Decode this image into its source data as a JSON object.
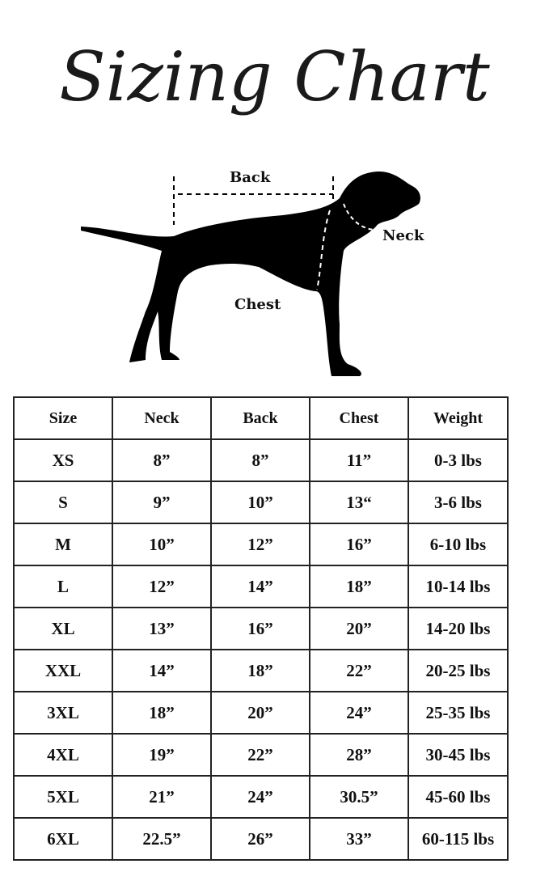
{
  "title": "Sizing Chart",
  "diagram": {
    "back_label": "Back",
    "neck_label": "Neck",
    "chest_label": "Chest"
  },
  "table": {
    "headers": [
      "Size",
      "Neck",
      "Back",
      "Chest",
      "Weight"
    ],
    "rows": [
      [
        "XS",
        "8”",
        "8”",
        "11”",
        "0-3 lbs"
      ],
      [
        "S",
        "9”",
        "10”",
        "13“",
        "3-6 lbs"
      ],
      [
        "M",
        "10”",
        "12”",
        "16”",
        "6-10 lbs"
      ],
      [
        "L",
        "12”",
        "14”",
        "18”",
        "10-14 lbs"
      ],
      [
        "XL",
        "13”",
        "16”",
        "20”",
        "14-20 lbs"
      ],
      [
        "XXL",
        "14”",
        "18”",
        "22”",
        "20-25 lbs"
      ],
      [
        "3XL",
        "18”",
        "20”",
        "24”",
        "25-35 lbs"
      ],
      [
        "4XL",
        "19”",
        "22”",
        "28”",
        "30-45 lbs"
      ],
      [
        "5XL",
        "21”",
        "24”",
        "30.5”",
        "45-60 lbs"
      ],
      [
        "6XL",
        "22.5”",
        "26”",
        "33”",
        "60-115 lbs"
      ]
    ]
  }
}
